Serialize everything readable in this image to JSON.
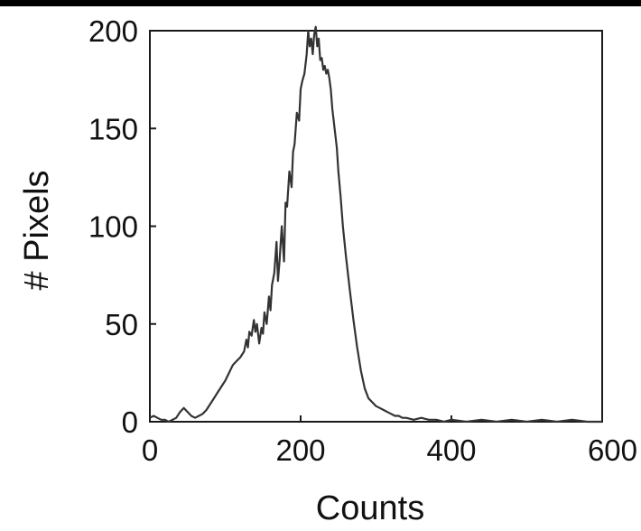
{
  "chart_data": {
    "type": "line",
    "title": "",
    "xlabel": "Counts",
    "ylabel": "# Pixels",
    "xlim": [
      0,
      600
    ],
    "ylim": [
      0,
      200
    ],
    "xticks": [
      0,
      200,
      400,
      600
    ],
    "yticks": [
      0,
      50,
      100,
      150,
      200
    ],
    "xtick_labels": [
      "0",
      "200",
      "400",
      "600"
    ],
    "ytick_labels": [
      "0",
      "50",
      "100",
      "150",
      "200"
    ],
    "grid": false,
    "legend": "none",
    "series": [
      {
        "color": "#333333",
        "x": [
          0,
          5,
          10,
          15,
          20,
          25,
          30,
          35,
          40,
          45,
          50,
          55,
          60,
          65,
          70,
          75,
          80,
          85,
          90,
          95,
          100,
          105,
          110,
          115,
          120,
          125,
          128,
          130,
          132,
          135,
          138,
          140,
          142,
          145,
          148,
          150,
          152,
          155,
          158,
          160,
          162,
          165,
          168,
          170,
          172,
          175,
          178,
          180,
          182,
          185,
          188,
          190,
          192,
          195,
          198,
          200,
          202,
          205,
          208,
          210,
          212,
          214,
          216,
          218,
          220,
          222,
          224,
          226,
          228,
          230,
          232,
          234,
          236,
          238,
          240,
          242,
          245,
          248,
          250,
          253,
          256,
          260,
          265,
          270,
          275,
          280,
          285,
          290,
          295,
          300,
          305,
          310,
          315,
          320,
          325,
          330,
          335,
          340,
          350,
          360,
          370,
          380,
          390,
          400,
          420,
          440,
          460,
          480,
          500,
          520,
          540,
          560,
          580,
          600
        ],
        "y": [
          2,
          3,
          2,
          1,
          1,
          0,
          1,
          2,
          5,
          7,
          5,
          3,
          2,
          3,
          4,
          6,
          9,
          12,
          15,
          18,
          21,
          25,
          29,
          31,
          33,
          36,
          42,
          38,
          46,
          44,
          52,
          46,
          50,
          40,
          48,
          45,
          56,
          50,
          64,
          57,
          70,
          76,
          92,
          72,
          82,
          100,
          82,
          112,
          110,
          128,
          120,
          138,
          142,
          158,
          154,
          170,
          174,
          178,
          188,
          200,
          192,
          196,
          188,
          198,
          202,
          192,
          196,
          185,
          186,
          180,
          182,
          178,
          180,
          176,
          170,
          160,
          150,
          140,
          128,
          115,
          100,
          85,
          68,
          52,
          38,
          26,
          17,
          12,
          10,
          8,
          7,
          6,
          5,
          4,
          3,
          3,
          2,
          2,
          1,
          2,
          1,
          1,
          0,
          1,
          0,
          1,
          0,
          1,
          0,
          1,
          0,
          1,
          0,
          0
        ]
      }
    ]
  }
}
